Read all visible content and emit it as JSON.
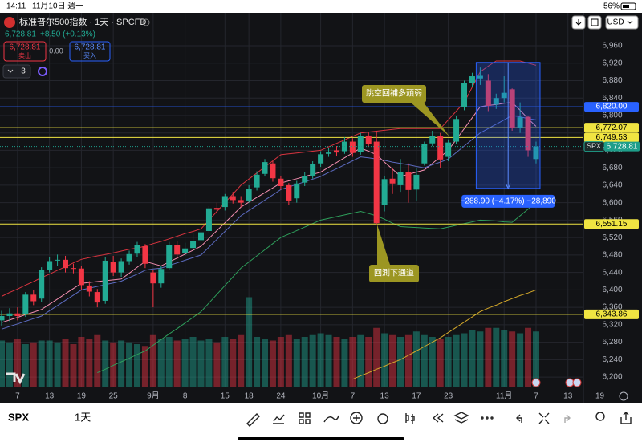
{
  "status_bar": {
    "time": "14:11",
    "date": "11月10日 週一",
    "battery": "56%"
  },
  "header": {
    "title": "标准普尔500指数 · 1天 · SPCFD",
    "price": "6,728.81",
    "change": "+8.50 (+0.13%)",
    "sell": {
      "price": "6,728.81",
      "label": "卖出"
    },
    "spread": "0.00",
    "buy": {
      "price": "6,728.81",
      "label": "买入"
    },
    "indicators": "3",
    "currency": "USD"
  },
  "toolbar": {
    "symbol": "SPX",
    "interval": "1天"
  },
  "chart_data": {
    "type": "candlestick",
    "grid": true,
    "up_color": "#22ab94",
    "down_color": "#f23645",
    "ylim": [
      6176.2,
      7035.4
    ],
    "yticks": [
      {
        "value": 6960,
        "label": "6,960"
      },
      {
        "value": 6920,
        "label": "6,920"
      },
      {
        "value": 6880,
        "label": "6,880"
      },
      {
        "value": 6840,
        "label": "6,840"
      },
      {
        "value": 6800,
        "label": "6,800"
      },
      {
        "value": 6760,
        "label": "6,760"
      },
      {
        "value": 6720,
        "label": "6,720"
      },
      {
        "value": 6680,
        "label": "6,680"
      },
      {
        "value": 6640,
        "label": "6,640"
      },
      {
        "value": 6600,
        "label": "6,600"
      },
      {
        "value": 6560,
        "label": "6,560"
      },
      {
        "value": 6520,
        "label": "6,520"
      },
      {
        "value": 6480,
        "label": "6,480"
      },
      {
        "value": 6440,
        "label": "6,440"
      },
      {
        "value": 6400,
        "label": "6,400"
      },
      {
        "value": 6360,
        "label": "6,360"
      },
      {
        "value": 6320,
        "label": "6,320"
      },
      {
        "value": 6280,
        "label": "6,280"
      },
      {
        "value": 6240,
        "label": "6,240"
      },
      {
        "value": 6200,
        "label": "6,200"
      }
    ],
    "categories": [
      null,
      null,
      "7",
      null,
      null,
      null,
      "13",
      null,
      null,
      null,
      "19",
      null,
      null,
      null,
      "25",
      null,
      null,
      null,
      null,
      "9月",
      null,
      null,
      null,
      "8",
      null,
      null,
      null,
      null,
      "15",
      null,
      null,
      "18",
      null,
      null,
      null,
      "24",
      null,
      null,
      null,
      null,
      "10月",
      null,
      null,
      null,
      "7",
      null,
      null,
      null,
      "13",
      null,
      null,
      null,
      "17",
      null,
      null,
      null,
      "23",
      null,
      null,
      null,
      null,
      null,
      null,
      "11月",
      null,
      null,
      null,
      "7",
      null,
      null,
      null,
      "13",
      null,
      null,
      null,
      "19"
    ],
    "open": [
      6330,
      6340,
      6346,
      6345,
      6389,
      6380,
      6446,
      6468,
      6469,
      6450,
      6449,
      6410,
      6395,
      6375,
      6465,
      6440,
      6466,
      6483,
      6500,
      6440,
      6415,
      6450,
      6503,
      6485,
      6496,
      6514,
      6535,
      6588,
      6590,
      6615,
      6606,
      6605,
      6635,
      6666,
      6690,
      6655,
      6640,
      6610,
      6646,
      6662,
      6690,
      6712,
      6720,
      6718,
      6740,
      6716,
      6754,
      6740,
      6595,
      6655,
      6640,
      6670,
      6630,
      6690,
      6736,
      6752,
      6705,
      6740,
      6820,
      6874,
      6885,
      6880,
      6825,
      6840,
      6860,
      6772,
      6797,
      6700,
      null,
      null,
      null,
      null,
      null,
      null,
      null,
      null
    ],
    "high": [
      6352,
      6358,
      6360,
      6395,
      6400,
      6452,
      6475,
      6481,
      6478,
      6460,
      6455,
      6420,
      6402,
      6475,
      6478,
      6472,
      6490,
      6510,
      6505,
      6445,
      6455,
      6510,
      6512,
      6508,
      6530,
      6540,
      6592,
      6600,
      6620,
      6625,
      6615,
      6640,
      6672,
      6700,
      6695,
      6662,
      6645,
      6650,
      6670,
      6695,
      6718,
      6725,
      6730,
      6750,
      6748,
      6760,
      6763,
      6765,
      6662,
      6680,
      6700,
      6690,
      6680,
      6740,
      6765,
      6760,
      6745,
      6800,
      6880,
      6898,
      6910,
      6895,
      6850,
      6890,
      6862,
      6830,
      6800,
      6740,
      null,
      null,
      null,
      null,
      null,
      null,
      null,
      null
    ],
    "low": [
      6318,
      6328,
      6330,
      6338,
      6365,
      6372,
      6440,
      6455,
      6440,
      6438,
      6400,
      6385,
      6360,
      6368,
      6432,
      6430,
      6458,
      6475,
      6450,
      6360,
      6405,
      6445,
      6470,
      6478,
      6490,
      6505,
      6530,
      6575,
      6582,
      6598,
      6590,
      6600,
      6628,
      6660,
      6648,
      6630,
      6595,
      6600,
      6638,
      6655,
      6682,
      6705,
      6706,
      6712,
      6705,
      6710,
      6728,
      6550,
      6580,
      6620,
      6625,
      6600,
      6605,
      6685,
      6730,
      6680,
      6695,
      6735,
      6812,
      6865,
      6870,
      6810,
      6815,
      6830,
      6765,
      6760,
      6705,
      6690,
      null,
      null,
      null,
      null,
      null,
      null,
      null,
      null
    ],
    "close": [
      6340,
      6346,
      6340,
      6389,
      6374,
      6446,
      6466,
      6469,
      6450,
      6449,
      6411,
      6396,
      6371,
      6467,
      6440,
      6466,
      6482,
      6502,
      6460,
      6415,
      6448,
      6502,
      6481,
      6495,
      6512,
      6532,
      6587,
      6584,
      6615,
      6606,
      6600,
      6631,
      6664,
      6693,
      6656,
      6638,
      6605,
      6644,
      6661,
      6688,
      6711,
      6715,
      6715,
      6740,
      6714,
      6753,
      6735,
      6553,
      6654,
      6644,
      6671,
      6629,
      6664,
      6735,
      6753,
      6699,
      6738,
      6792,
      6875,
      6890,
      6891,
      6822,
      6840,
      6852,
      6771,
      6796,
      6720,
      6728.81,
      null,
      null,
      null,
      null,
      null,
      null,
      null,
      null
    ],
    "volume": [
      2.6,
      2.5,
      2.7,
      2.4,
      2.5,
      2.6,
      2.6,
      2.5,
      2.7,
      2.4,
      2.8,
      2.7,
      2.9,
      2.6,
      2.5,
      2.6,
      2.5,
      2.4,
      2.3,
      2.9,
      2.7,
      2.8,
      2.6,
      2.7,
      2.8,
      2.6,
      2.7,
      2.5,
      2.8,
      2.7,
      2.9,
      5.0,
      2.8,
      2.7,
      2.6,
      2.8,
      2.9,
      2.7,
      2.8,
      2.9,
      3.0,
      2.9,
      2.8,
      2.7,
      2.8,
      2.9,
      2.8,
      3.3,
      3.0,
      2.9,
      2.8,
      2.9,
      3.1,
      2.9,
      2.8,
      2.7,
      2.8,
      2.9,
      3.0,
      3.2,
      3.1,
      3.3,
      3.3,
      3.2,
      3.1,
      3.0,
      3.3,
      3.1,
      null,
      null,
      null,
      null,
      null,
      null,
      null,
      null
    ],
    "series": [
      {
        "color": "#d8343f",
        "values": [
          6385,
          6394,
          6402,
          6411,
          6419,
          6428,
          6436,
          6445,
          6453,
          6462,
          6470,
          6474,
          6478,
          6481,
          6485,
          6489,
          6493,
          6496,
          6500,
          6506,
          6511,
          6517,
          6523,
          6529,
          6534,
          6540,
          6560,
          6580,
          6600,
          6620,
          6640,
          6654,
          6668,
          6682,
          6696,
          6710,
          6712,
          6714,
          6716,
          6718,
          6720,
          6728,
          6736,
          6744,
          6752,
          6760,
          6762,
          6764,
          6766,
          6768,
          6770,
          6770,
          6770,
          6770,
          6770,
          6770,
          6790,
          6810,
          6830,
          6865,
          6900,
          6913,
          6925,
          6925,
          6925,
          6925,
          6920,
          6915,
          null,
          null,
          null,
          null,
          null,
          null,
          null,
          null
        ]
      },
      {
        "color": "#f48fb1",
        "values": [
          6325,
          6331,
          6337,
          6343,
          6349,
          6355,
          6367,
          6379,
          6391,
          6403,
          6415,
          6417,
          6419,
          6421,
          6423,
          6425,
          6438,
          6452,
          6465,
          6460,
          6455,
          6464,
          6473,
          6482,
          6491,
          6500,
          6518,
          6536,
          6554,
          6572,
          6590,
          6601,
          6612,
          6623,
          6634,
          6645,
          6650,
          6655,
          6660,
          6665,
          6670,
          6681,
          6692,
          6703,
          6714,
          6725,
          6718,
          6710,
          6693,
          6677,
          6660,
          6665,
          6670,
          6675,
          6690,
          6705,
          6720,
          6745,
          6770,
          6795,
          6820,
          6823,
          6825,
          6828,
          6830,
          6812,
          6793,
          6775,
          null,
          null,
          null,
          null,
          null,
          null,
          null,
          null
        ]
      },
      {
        "color": "#5c6bc0",
        "values": [
          6310,
          6316,
          6322,
          6328,
          6334,
          6340,
          6352,
          6364,
          6376,
          6388,
          6400,
          6404,
          6408,
          6412,
          6416,
          6420,
          6428,
          6436,
          6445,
          6448,
          6450,
          6456,
          6462,
          6468,
          6474,
          6480,
          6498,
          6516,
          6534,
          6552,
          6570,
          6582,
          6594,
          6606,
          6618,
          6630,
          6636,
          6642,
          6648,
          6654,
          6660,
          6669,
          6678,
          6687,
          6696,
          6705,
          6703,
          6700,
          6697,
          6693,
          6690,
          6687,
          6683,
          6680,
          6687,
          6693,
          6700,
          6715,
          6730,
          6745,
          6760,
          6770,
          6780,
          6790,
          6800,
          6797,
          6793,
          6790,
          null,
          null,
          null,
          null,
          null,
          null,
          null,
          null
        ]
      },
      {
        "color": "#2e9e5b",
        "values": [
          null,
          null,
          null,
          null,
          null,
          null,
          null,
          null,
          null,
          null,
          null,
          null,
          6210,
          6218,
          6227,
          6235,
          6243,
          6252,
          6260,
          6273,
          6286,
          6299,
          6311,
          6324,
          6337,
          6350,
          6370,
          6390,
          6410,
          6430,
          6450,
          6464,
          6478,
          6492,
          6506,
          6520,
          6528,
          6536,
          6544,
          6552,
          6560,
          6564,
          6568,
          6572,
          6576,
          6580,
          6575,
          6570,
          6562,
          6553,
          6545,
          6544,
          6543,
          6542,
          6541,
          6540,
          6544,
          6548,
          6552,
          6556,
          6560,
          6559,
          6558,
          6556,
          6555,
          6570,
          6585,
          6600,
          null,
          null,
          null,
          null,
          null,
          null,
          null,
          null
        ]
      },
      {
        "color": "#d4a82a",
        "values": [
          null,
          null,
          null,
          null,
          null,
          null,
          null,
          null,
          null,
          null,
          null,
          null,
          null,
          null,
          null,
          null,
          null,
          null,
          null,
          null,
          null,
          null,
          null,
          null,
          null,
          null,
          null,
          null,
          null,
          null,
          null,
          null,
          null,
          null,
          null,
          null,
          null,
          null,
          null,
          null,
          null,
          null,
          null,
          null,
          6195,
          6203,
          6210,
          6218,
          6225,
          6233,
          6240,
          6250,
          6260,
          6270,
          6280,
          6290,
          6302,
          6314,
          6326,
          6338,
          6350,
          6358,
          6365,
          6373,
          6380,
          6387,
          6393,
          6400,
          null,
          null,
          null,
          null,
          null,
          null,
          null,
          null
        ]
      }
    ],
    "levels": [
      {
        "value": 6820,
        "label": "6,820.00",
        "color": "#2962ff",
        "text_color": "#ffffff"
      },
      {
        "value": 6772.07,
        "label": "6,772.07",
        "color": "#f0e442",
        "text_color": "#000000"
      },
      {
        "value": 6749.53,
        "label": "6,749.53",
        "color": "#f0e442",
        "text_color": "#000000"
      },
      {
        "value": 6551.15,
        "label": "6,551.15",
        "color": "#f0e442",
        "text_color": "#000000"
      },
      {
        "value": 6343.86,
        "label": "6,343.86",
        "color": "#f0e442",
        "text_color": "#000000"
      }
    ],
    "last": {
      "name": "SPX",
      "value": 6728.81,
      "label": "6,728.81",
      "color": "#1e9e8a"
    },
    "measure": {
      "from": 6921.71,
      "to": 6632.81,
      "label": "−288.90 (−4.17%) −28,890"
    },
    "annotations": [
      {
        "text": "跳空回補多頭弱"
      },
      {
        "text": "回測下通道"
      }
    ]
  }
}
